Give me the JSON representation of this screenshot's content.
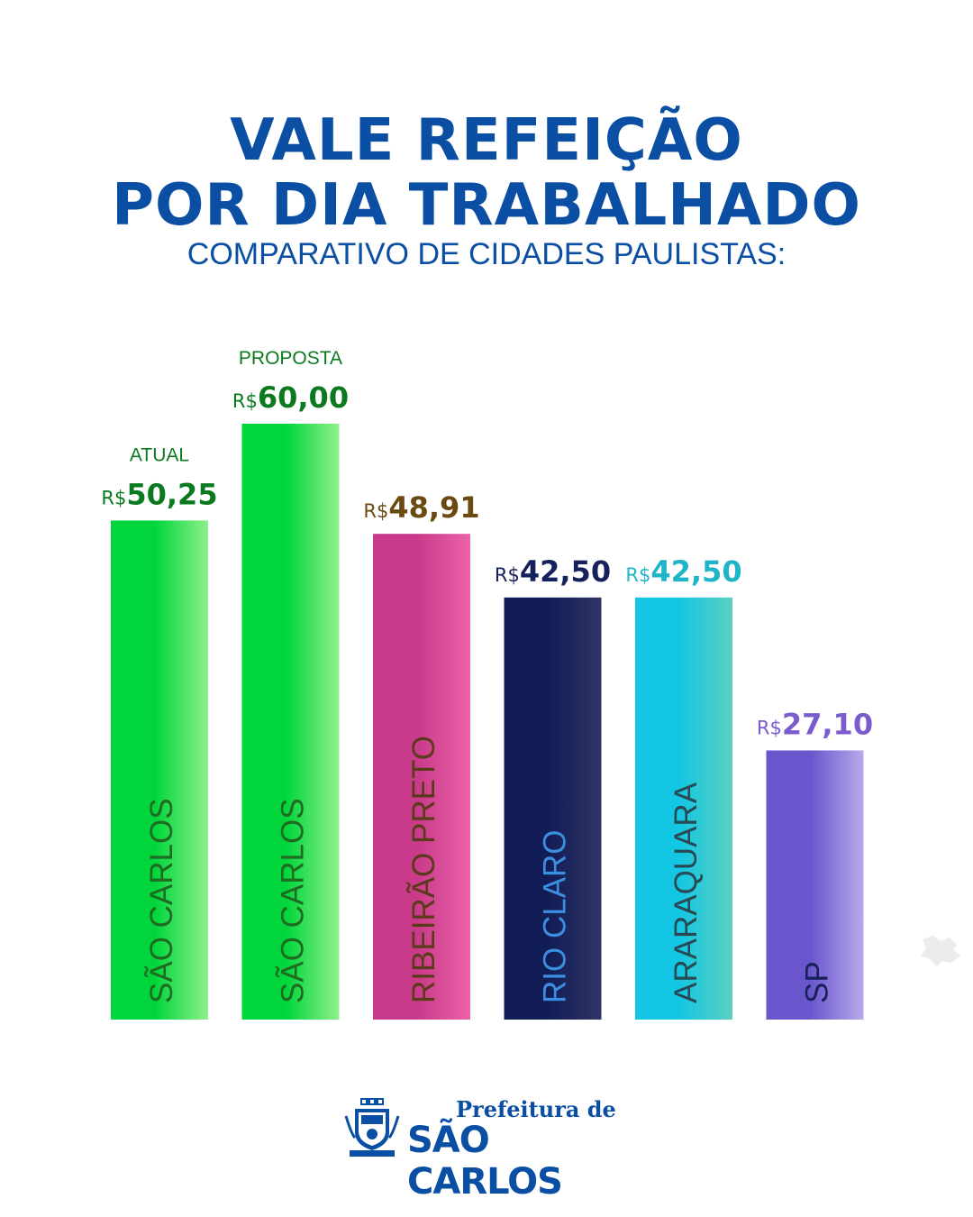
{
  "header": {
    "title_line1": "VALE REFEIÇÃO",
    "title_line2": "POR DIA TRABALHADO",
    "subtitle": "COMPARATIVO DE CIDADES PAULISTAS:"
  },
  "chart_data": {
    "type": "bar",
    "title": "VALE REFEIÇÃO POR DIA TRABALHADO",
    "subtitle": "COMPARATIVO DE CIDADES PAULISTAS:",
    "currency": "R$",
    "categories": [
      "SÃO CARLOS",
      "SÃO CARLOS",
      "RIBEIRÃO PRETO",
      "RIO CLARO",
      "ARARAQUARA",
      "SP"
    ],
    "values": [
      50.25,
      60.0,
      48.91,
      42.5,
      42.5,
      27.1
    ],
    "value_labels": [
      "50,25",
      "60,00",
      "48,91",
      "42,50",
      "42,50",
      "27,10"
    ],
    "tags": [
      "ATUAL",
      "PROPOSTA",
      "",
      "",
      "",
      ""
    ],
    "colors_start": [
      "#00d63b",
      "#00d63b",
      "#c93a8a",
      "#121c56",
      "#13c6e3",
      "#6a56cc"
    ],
    "colors_end": [
      "#8ff08a",
      "#8ff08a",
      "#ea62aa",
      "#2e3565",
      "#5ad0c0",
      "#b7a9ec"
    ],
    "label_colors": [
      "#0b7a1f",
      "#0b7a1f",
      "#6b4a12",
      "#16205a",
      "#1fb5c9",
      "#7b5ccf"
    ],
    "category_text_colors": [
      "#1f6b22",
      "#1f6b22",
      "#5a3a1a",
      "#3b8fe0",
      "#274a55",
      "#16205a"
    ],
    "ylim": [
      0,
      60
    ],
    "grid": false,
    "legend": "none"
  },
  "footer": {
    "logo_line1": "Prefeitura de",
    "logo_line2": "SÃO CARLOS",
    "brand_color": "#0a4fa3"
  }
}
